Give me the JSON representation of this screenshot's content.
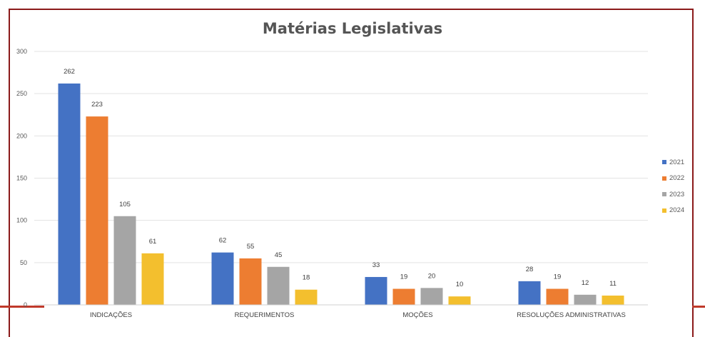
{
  "chart_data": {
    "type": "bar",
    "title": "Matérias Legislativas",
    "xlabel": "",
    "ylabel": "",
    "categories": [
      "INDICAÇÕES",
      "REQUERIMENTOS",
      "MOÇÕES",
      "RESOLUÇÕES ADMINISTRATIVAS"
    ],
    "series": [
      {
        "name": "2021",
        "values": [
          262,
          62,
          33,
          28
        ],
        "color": "#4472c4"
      },
      {
        "name": "2022",
        "values": [
          223,
          55,
          19,
          19
        ],
        "color": "#ed7d31"
      },
      {
        "name": "2023",
        "values": [
          105,
          45,
          20,
          12
        ],
        "color": "#a5a5a5"
      },
      {
        "name": "2024",
        "values": [
          61,
          18,
          10,
          11
        ],
        "color": "#f3bf2e"
      }
    ],
    "ylim": [
      0,
      300
    ],
    "yticks": [
      "0",
      "50",
      "100",
      "150",
      "200",
      "250",
      "300"
    ],
    "grid": true,
    "legend_position": "right"
  }
}
